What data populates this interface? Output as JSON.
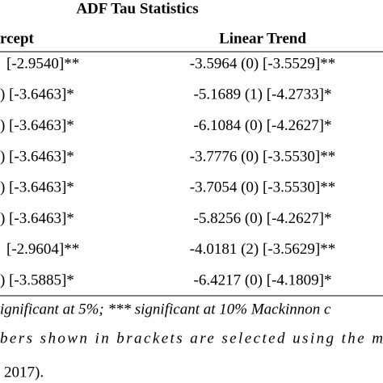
{
  "header": {
    "title": "ADF Tau Statistics"
  },
  "table": {
    "columns": [
      "rcept",
      "Linear Trend"
    ],
    "rows": [
      [
        "[-2.9540]**",
        "-3.5964 (0) [-3.5529]**"
      ],
      [
        ") [-3.6463]*",
        "-5.1689 (1) [-4.2733]*"
      ],
      [
        ") [-3.6463]*",
        "-6.1084 (0) [-4.2627]*"
      ],
      [
        ") [-3.6463]*",
        "-3.7776 (0) [-3.5530]**"
      ],
      [
        ") [-3.6463]*",
        "-3.7054 (0) [-3.5530]**"
      ],
      [
        ") [-3.6463]*",
        "-5.8256 (0) [-4.2627]*"
      ],
      [
        "[-2.9604]**",
        "-4.0181 (2) [-3.5629]**"
      ],
      [
        ") [-3.5885]*",
        "-6.4217 (0) [-4.1809]*"
      ]
    ]
  },
  "footnotes": [
    "ignificant at 5%; *** significant at 10% Mackinnon c",
    "bers shown in brackets are selected using the m",
    "2017)."
  ]
}
